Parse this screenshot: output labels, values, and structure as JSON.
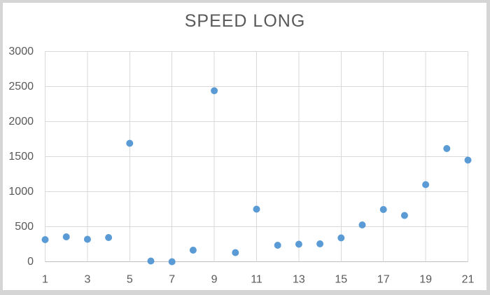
{
  "chart_data": {
    "type": "scatter",
    "title": "SPEED LONG",
    "xlabel": "",
    "ylabel": "",
    "legend": false,
    "grid": true,
    "xlim": [
      1,
      21
    ],
    "ylim": [
      0,
      3000
    ],
    "x_ticks": [
      1,
      3,
      5,
      7,
      9,
      11,
      13,
      15,
      17,
      19,
      21
    ],
    "y_ticks": [
      0,
      500,
      1000,
      1500,
      2000,
      2500,
      3000
    ],
    "x": [
      1,
      2,
      3,
      4,
      5,
      6,
      7,
      8,
      9,
      10,
      11,
      12,
      13,
      14,
      15,
      16,
      17,
      18,
      19,
      20,
      21
    ],
    "values": [
      315,
      355,
      320,
      345,
      1690,
      10,
      0,
      165,
      2440,
      130,
      750,
      235,
      250,
      255,
      340,
      525,
      745,
      660,
      1100,
      1615,
      1450
    ],
    "series_name": "SPEED LONG",
    "marker_color": "#5B9BD5",
    "grid_color": "#D9D9D9",
    "axis_color": "#BFBFBF",
    "text_color": "#595959",
    "plot_background": "#FFFFFF",
    "frame_border_color": "#D5D5D5"
  }
}
